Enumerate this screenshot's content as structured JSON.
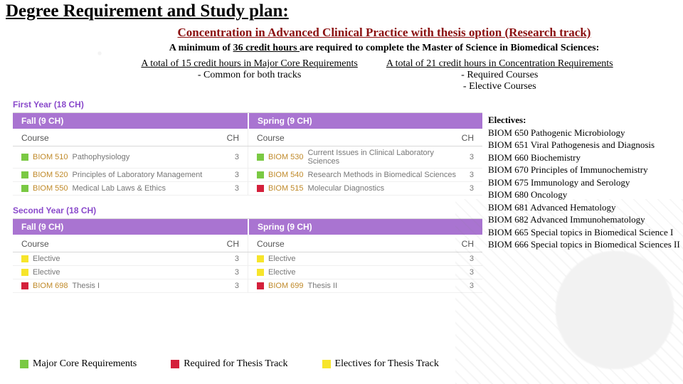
{
  "colors": {
    "core": "#7ac943",
    "thesisReq": "#d4203b",
    "elective": "#f7e52b",
    "purpleHeader": "#a974d1",
    "yearLabel": "#8a4acb",
    "subtitle": "#8a0f0f"
  },
  "heading": "Degree Requirement and Study plan:",
  "subtitle": "Concentration in Advanced Clinical Practice with thesis option (Research track)",
  "min": {
    "prefix": "A minimum of ",
    "bold": "36 credit hours ",
    "suffix": "are required to complete the Master of Science in Biomedical Sciences:"
  },
  "reqA": {
    "top": "A total of 15 credit hours in  Major Core Requirements",
    "sub": "-   Common for both tracks"
  },
  "reqB": {
    "top": "A total of 21 credit hours in Concentration Requirements",
    "sub1": "- Required Courses",
    "sub2": "- Elective Courses"
  },
  "year1": {
    "label": "First Year (18 CH)",
    "fall": {
      "header": "Fall (9 CH)",
      "colCourse": "Course",
      "colCH": "CH",
      "rows": [
        {
          "type": "core",
          "code": "BIOM 510",
          "title": "Pathophysiology",
          "ch": "3"
        },
        {
          "type": "core",
          "code": "BIOM 520",
          "title": "Principles of Laboratory Management",
          "ch": "3"
        },
        {
          "type": "core",
          "code": "BIOM 550",
          "title": "Medical Lab Laws & Ethics",
          "ch": "3"
        }
      ]
    },
    "spring": {
      "header": "Spring (9 CH)",
      "colCourse": "Course",
      "colCH": "CH",
      "rows": [
        {
          "type": "core",
          "code": "BIOM 530",
          "title": "Current Issues in Clinical Laboratory Sciences",
          "ch": "3"
        },
        {
          "type": "core",
          "code": "BIOM 540",
          "title": "Research Methods in Biomedical Sciences",
          "ch": "3"
        },
        {
          "type": "thesisReq",
          "code": "BIOM 515",
          "title": "Molecular Diagnostics",
          "ch": "3"
        }
      ]
    }
  },
  "year2": {
    "label": "Second Year (18 CH)",
    "fall": {
      "header": "Fall (9 CH)",
      "colCourse": "Course",
      "colCH": "CH",
      "rows": [
        {
          "type": "elective",
          "code": "",
          "title": "Elective",
          "ch": "3"
        },
        {
          "type": "elective",
          "code": "",
          "title": "Elective",
          "ch": "3"
        },
        {
          "type": "thesisReq",
          "code": "BIOM 698",
          "title": "Thesis I",
          "ch": "3"
        }
      ]
    },
    "spring": {
      "header": "Spring (9 CH)",
      "colCourse": "Course",
      "colCH": "CH",
      "rows": [
        {
          "type": "elective",
          "code": "",
          "title": "Elective",
          "ch": "3"
        },
        {
          "type": "elective",
          "code": "",
          "title": "Elective",
          "ch": "3"
        },
        {
          "type": "thesisReq",
          "code": "BIOM 699",
          "title": "Thesis II",
          "ch": "3"
        }
      ]
    }
  },
  "electives": {
    "heading": "Electives:",
    "items": [
      "BIOM 650 Pathogenic Microbiology",
      "BIOM 651 Viral Pathogenesis and Diagnosis",
      "BIOM 660 Biochemistry",
      "BIOM 670 Principles of Immunochemistry",
      "BIOM 675 Immunology and Serology",
      "BIOM 680 Oncology",
      "BIOM 681 Advanced Hematology",
      "BIOM 682 Advanced Immunohematology",
      "BIOM 665 Special topics in Biomedical Science I",
      "BIOM 666 Special topics in Biomedical Sciences II"
    ]
  },
  "legend": {
    "core": "Major Core Requirements",
    "thesisReq": "Required for Thesis Track",
    "elective": "Electives for Thesis Track"
  }
}
